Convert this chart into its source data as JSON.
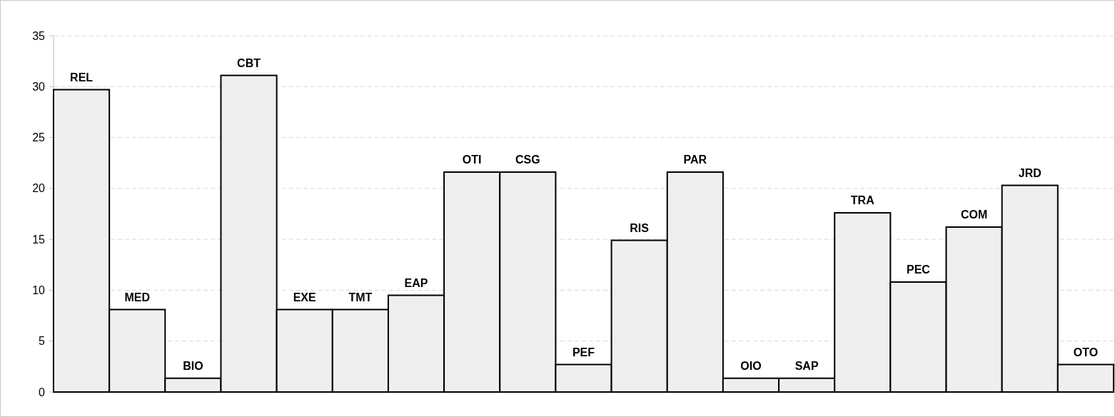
{
  "chart_data": {
    "type": "bar",
    "categories": [
      "REL",
      "MED",
      "BIO",
      "CBT",
      "EXE",
      "TMT",
      "EAP",
      "OTI",
      "CSG",
      "PEF",
      "RIS",
      "PAR",
      "OIO",
      "SAP",
      "TRA",
      "PEC",
      "COM",
      "JRD",
      "OTO"
    ],
    "values": [
      29.7,
      8.1,
      1.35,
      31.1,
      8.1,
      8.1,
      9.5,
      21.6,
      21.6,
      2.7,
      14.9,
      21.6,
      1.35,
      1.35,
      17.6,
      10.8,
      16.2,
      20.3,
      2.7
    ],
    "color": "#efefef",
    "ylim": [
      0,
      35
    ],
    "yticks": [
      0,
      5,
      10,
      15,
      20,
      25,
      30,
      35
    ],
    "grid": "y"
  }
}
